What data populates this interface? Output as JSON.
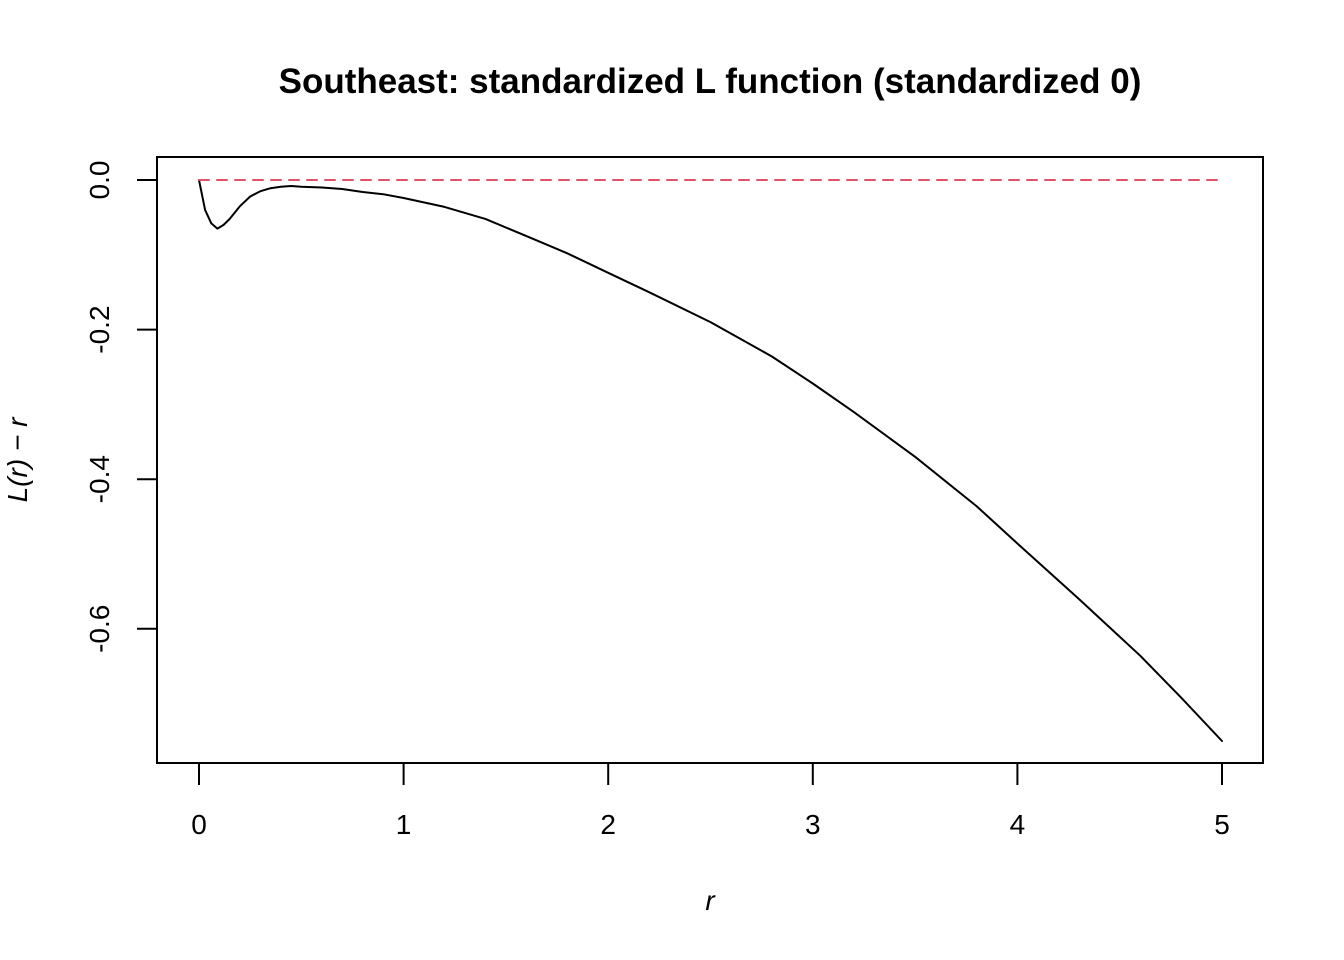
{
  "chart_data": {
    "type": "line",
    "title": "Southeast: standardized L function (standardized 0)",
    "xlabel": "r",
    "ylabel": "L(r) − r",
    "xlim": [
      0,
      5
    ],
    "ylim": [
      -0.75,
      0
    ],
    "x_ticks": [
      0,
      1,
      2,
      3,
      4,
      5
    ],
    "x_tick_labels": [
      "0",
      "1",
      "2",
      "3",
      "4",
      "5"
    ],
    "y_ticks": [
      0,
      -0.2,
      -0.4,
      -0.6
    ],
    "y_tick_labels": [
      "0.0",
      "-0.2",
      "-0.4",
      "-0.6"
    ],
    "grid": false,
    "legend": "none",
    "series": [
      {
        "color": "#000000",
        "style": "solid",
        "x": [
          0,
          0.03,
          0.06,
          0.09,
          0.12,
          0.15,
          0.2,
          0.25,
          0.3,
          0.35,
          0.4,
          0.45,
          0.5,
          0.6,
          0.7,
          0.8,
          0.9,
          1.0,
          1.2,
          1.4,
          1.6,
          1.8,
          2.0,
          2.2,
          2.5,
          2.8,
          3.0,
          3.2,
          3.5,
          3.8,
          4.0,
          4.3,
          4.6,
          4.8,
          5.0
        ],
        "y": [
          0,
          -0.04,
          -0.058,
          -0.065,
          -0.06,
          -0.052,
          -0.035,
          -0.022,
          -0.015,
          -0.011,
          -0.009,
          -0.008,
          -0.009,
          -0.01,
          -0.012,
          -0.016,
          -0.019,
          -0.024,
          -0.036,
          -0.052,
          -0.075,
          -0.098,
          -0.124,
          -0.15,
          -0.19,
          -0.236,
          -0.272,
          -0.31,
          -0.37,
          -0.436,
          -0.486,
          -0.56,
          -0.636,
          -0.692,
          -0.75
        ]
      },
      {
        "color": "#DF536B",
        "style": "dashed",
        "x": [
          0,
          5
        ],
        "y": [
          0,
          0
        ]
      }
    ]
  }
}
